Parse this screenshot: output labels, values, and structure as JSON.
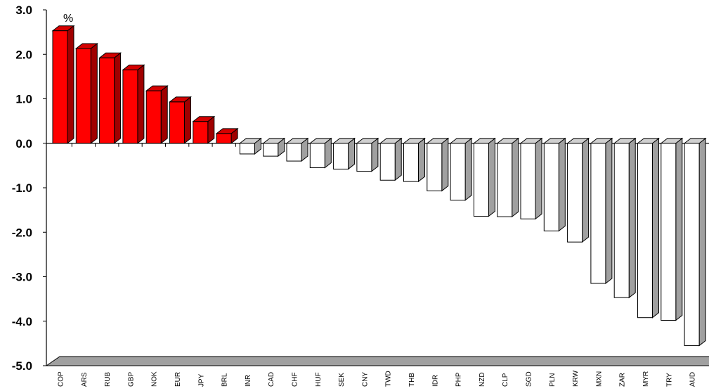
{
  "chart_data": {
    "type": "bar",
    "unit_label": "%",
    "categories": [
      "COP",
      "ARS",
      "RUB",
      "GBP",
      "NOK",
      "EUR",
      "JPY",
      "BRL",
      "INR",
      "CAD",
      "CHF",
      "HUF",
      "SEK",
      "CNY",
      "TWD",
      "THB",
      "IDR",
      "PHP",
      "NZD",
      "CLP",
      "SGD",
      "PLN",
      "KRW",
      "MXN",
      "ZAR",
      "MYR",
      "TRY",
      "AUD"
    ],
    "values": [
      2.53,
      2.13,
      1.92,
      1.65,
      1.18,
      0.93,
      0.49,
      0.22,
      -0.24,
      -0.29,
      -0.4,
      -0.55,
      -0.58,
      -0.63,
      -0.83,
      -0.86,
      -1.07,
      -1.28,
      -1.64,
      -1.65,
      -1.7,
      -1.97,
      -2.22,
      -3.15,
      -3.47,
      -3.92,
      -3.98,
      -4.55
    ],
    "ylim": [
      -5.0,
      3.0
    ],
    "yticks": [
      "3.0",
      "2.0",
      "1.0",
      "0.0",
      "-1.0",
      "-2.0",
      "-3.0",
      "-4.0",
      "-5.0"
    ],
    "colors": {
      "positive": "#ff0000",
      "positive_side": "#a00000",
      "positive_top": "#d40000",
      "negative": "#ffffff",
      "negative_side": "#a0a0a0",
      "negative_top": "#d0d0d0",
      "floor": "#a0a0a0"
    },
    "grid": false,
    "legend": "none"
  }
}
